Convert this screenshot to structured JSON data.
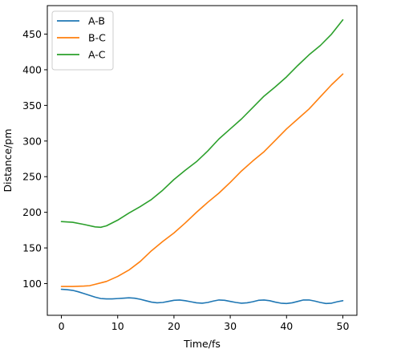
{
  "chart_data": {
    "type": "line",
    "xlabel": "Time/fs",
    "ylabel": "Distance/pm",
    "xlim": [
      -2.5,
      52.5
    ],
    "ylim": [
      55.5,
      490
    ],
    "xticks": [
      0,
      10,
      20,
      30,
      40,
      50
    ],
    "yticks": [
      100,
      150,
      200,
      250,
      300,
      350,
      400,
      450
    ],
    "grid": false,
    "legend_position": "top-left",
    "series": [
      {
        "name": "A-B",
        "color": "#1f77b4",
        "x": [
          0,
          1,
          2,
          3,
          4,
          5,
          6,
          7,
          8,
          9,
          10,
          11,
          12,
          13,
          14,
          15,
          16,
          17,
          18,
          19,
          20,
          21,
          22,
          23,
          24,
          25,
          26,
          27,
          28,
          29,
          30,
          31,
          32,
          33,
          34,
          35,
          36,
          37,
          38,
          39,
          40,
          41,
          42,
          43,
          44,
          45,
          46,
          47,
          48,
          49,
          50
        ],
        "values": [
          92,
          91.5,
          90.5,
          88.5,
          86,
          83.5,
          81,
          79,
          78.5,
          78.5,
          79,
          79.5,
          80,
          79.5,
          78,
          76,
          74,
          73,
          73.5,
          75,
          76.5,
          77,
          76,
          74.5,
          73,
          72.5,
          73.5,
          75.5,
          77,
          76.5,
          75,
          73.5,
          72.5,
          73,
          74.5,
          76.5,
          77,
          76,
          74,
          72.5,
          72,
          73,
          75,
          77,
          77,
          75.5,
          73.5,
          72,
          72.5,
          74.5,
          76
        ]
      },
      {
        "name": "B-C",
        "color": "#ff7f0e",
        "x": [
          0,
          2,
          4,
          5,
          6,
          8,
          10,
          12,
          14,
          16,
          18,
          20,
          22,
          24,
          26,
          28,
          30,
          32,
          34,
          36,
          38,
          40,
          42,
          44,
          46,
          48,
          50
        ],
        "values": [
          96,
          96,
          96.5,
          97,
          99,
          103,
          110,
          119,
          131,
          146,
          159,
          171,
          185,
          200,
          214,
          227,
          242,
          258,
          272,
          285,
          301,
          317,
          331,
          345,
          362,
          379,
          394
        ]
      },
      {
        "name": "A-C",
        "color": "#2ca02c",
        "x": [
          0,
          2,
          4,
          6,
          7,
          8,
          10,
          12,
          14,
          16,
          18,
          20,
          22,
          24,
          26,
          28,
          30,
          32,
          34,
          36,
          38,
          40,
          42,
          44,
          46,
          48,
          50
        ],
        "values": [
          187,
          186,
          183,
          179.5,
          179,
          181,
          189,
          199,
          208,
          218,
          231,
          246,
          259,
          271,
          286,
          303,
          317,
          331,
          347,
          363,
          376,
          390,
          406,
          421,
          434,
          450,
          470
        ]
      }
    ]
  }
}
